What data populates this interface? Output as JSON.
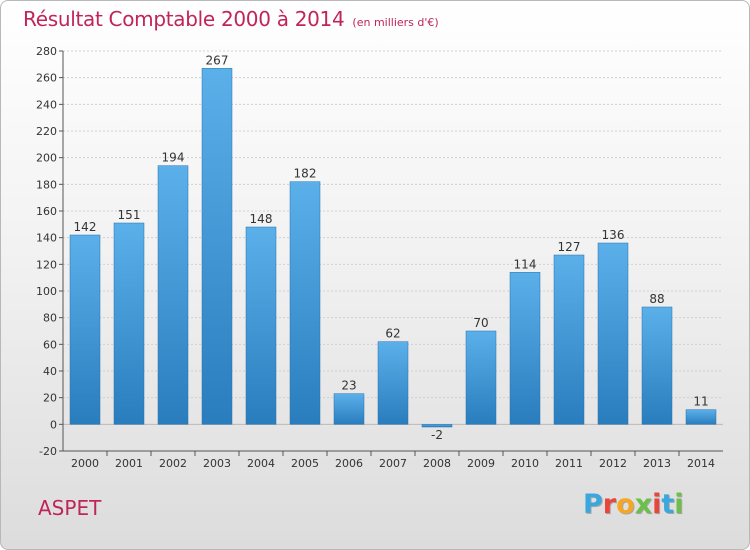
{
  "header": {
    "title": "Résultat Comptable 2000 à 2014",
    "subtitle": "(en milliers d'€)"
  },
  "footer": {
    "commune": "ASPET",
    "logo_letters": [
      "P",
      "r",
      "o",
      "x",
      "i",
      "t",
      "i"
    ],
    "logo_colors": [
      "#3aa7de",
      "#e8463c",
      "#f5a623",
      "#6cc04a",
      "#e8463c",
      "#3aa7de",
      "#6cc04a"
    ]
  },
  "chart_data": {
    "type": "bar",
    "title": "Résultat Comptable 2000 à 2014",
    "subtitle": "(en milliers d'€)",
    "xlabel": "",
    "ylabel": "",
    "categories": [
      "2000",
      "2001",
      "2002",
      "2003",
      "2004",
      "2005",
      "2006",
      "2007",
      "2008",
      "2009",
      "2010",
      "2011",
      "2012",
      "2013",
      "2014"
    ],
    "values": [
      142,
      151,
      194,
      267,
      148,
      182,
      23,
      62,
      -2,
      70,
      114,
      127,
      136,
      88,
      11
    ],
    "value_labels": [
      "142",
      "151",
      "194",
      "267",
      "148",
      "182",
      "23",
      "62",
      "-2",
      "70",
      "114",
      "127",
      "136",
      "88",
      "11"
    ],
    "yticks": [
      "-20",
      "0",
      "20",
      "40",
      "60",
      "80",
      "100",
      "120",
      "140",
      "160",
      "180",
      "200",
      "220",
      "240",
      "260",
      "280"
    ],
    "ylim": [
      -20,
      280
    ],
    "grid": true,
    "bar_color_top": "#5bb0ea",
    "bar_color_bottom": "#2a7dbd"
  }
}
